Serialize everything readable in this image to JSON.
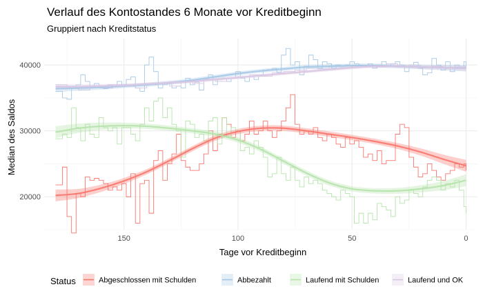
{
  "chart_data": {
    "type": "line",
    "title": "Verlauf des Kontostandes 6 Monate vor Kreditbeginn",
    "subtitle": "Gruppiert nach Kreditstatus",
    "xlabel": "Tage vor Kreditbeginn",
    "ylabel": "Median des Saldos",
    "x_reversed": true,
    "xlim": [
      185,
      -5
    ],
    "ylim": [
      15000,
      44000
    ],
    "x_ticks": [
      150,
      100,
      50,
      0
    ],
    "y_ticks": [
      20000,
      30000,
      40000
    ],
    "x_tick_labels": [
      "150",
      "100",
      "50",
      "0"
    ],
    "y_tick_labels": [
      "20000",
      "30000",
      "40000"
    ],
    "grid": true,
    "legend_position": "bottom",
    "legend_title": "Status",
    "series": [
      {
        "name": "Abgeschlossen mit Schulden",
        "color": "#f8766d",
        "x": [
          180,
          177,
          175,
          173,
          171,
          169,
          167,
          165,
          163,
          161,
          159,
          157,
          155,
          153,
          151,
          149,
          147,
          145,
          143,
          141,
          139,
          137,
          135,
          133,
          131,
          129,
          127,
          125,
          123,
          121,
          119,
          117,
          115,
          113,
          111,
          109,
          107,
          105,
          103,
          101,
          99,
          97,
          95,
          93,
          91,
          89,
          87,
          85,
          83,
          81,
          79,
          77,
          75,
          73,
          71,
          69,
          67,
          65,
          63,
          61,
          59,
          57,
          55,
          53,
          51,
          49,
          47,
          45,
          43,
          41,
          39,
          37,
          35,
          33,
          31,
          29,
          27,
          25,
          23,
          21,
          19,
          17,
          15,
          13,
          11,
          9,
          7,
          5,
          3,
          1,
          0
        ],
        "values": [
          21800,
          24500,
          17000,
          14500,
          20500,
          20000,
          23000,
          22500,
          22800,
          22500,
          22000,
          21000,
          21500,
          21000,
          22000,
          20000,
          23500,
          16000,
          22000,
          22500,
          17500,
          25500,
          27000,
          22500,
          25000,
          26500,
          29500,
          25500,
          24500,
          24000,
          24000,
          25000,
          26500,
          30000,
          27000,
          29500,
          32000,
          31000,
          29000,
          30000,
          28500,
          29500,
          31500,
          29500,
          30000,
          31500,
          30000,
          29000,
          30000,
          31500,
          33500,
          35500,
          31000,
          29500,
          30000,
          29500,
          30500,
          29000,
          28500,
          29500,
          29000,
          28000,
          27500,
          29000,
          28000,
          28500,
          27500,
          26000,
          26500,
          25500,
          27000,
          25000,
          25500,
          25500,
          29500,
          31000,
          30500,
          26000,
          24500,
          23000,
          23500,
          25000,
          24000,
          23000,
          22500,
          23500,
          24000,
          25000,
          24500,
          25000,
          24000
        ],
        "trend_x": [
          180,
          170,
          160,
          150,
          140,
          130,
          120,
          110,
          100,
          90,
          80,
          70,
          60,
          50,
          40,
          30,
          20,
          10,
          0
        ],
        "trend": [
          20200,
          20500,
          21300,
          22400,
          23800,
          25500,
          27300,
          28900,
          29900,
          30400,
          30400,
          30000,
          29500,
          29000,
          28400,
          27700,
          26800,
          25700,
          24700
        ],
        "ci_halfwidth": [
          900,
          700,
          550,
          450,
          400,
          400,
          400,
          400,
          400,
          400,
          400,
          400,
          400,
          400,
          400,
          450,
          550,
          700,
          900
        ]
      },
      {
        "name": "Abbezahlt",
        "color": "#a6c8e6",
        "x": [
          180,
          177,
          175,
          173,
          171,
          169,
          167,
          165,
          163,
          161,
          159,
          157,
          155,
          153,
          151,
          149,
          147,
          145,
          143,
          141,
          139,
          137,
          135,
          133,
          131,
          129,
          127,
          125,
          123,
          121,
          119,
          117,
          115,
          113,
          111,
          109,
          107,
          105,
          103,
          101,
          99,
          97,
          95,
          93,
          91,
          89,
          87,
          85,
          83,
          81,
          79,
          77,
          75,
          73,
          71,
          69,
          67,
          65,
          63,
          61,
          59,
          57,
          55,
          53,
          51,
          49,
          47,
          45,
          43,
          41,
          39,
          37,
          35,
          33,
          31,
          29,
          27,
          25,
          23,
          21,
          19,
          17,
          15,
          13,
          11,
          9,
          7,
          5,
          3,
          1,
          0
        ],
        "values": [
          36000,
          35000,
          34800,
          36500,
          37000,
          38500,
          37500,
          36800,
          37200,
          36600,
          36400,
          37000,
          36800,
          37500,
          37000,
          37800,
          38200,
          36500,
          36000,
          40000,
          41200,
          39000,
          36500,
          37000,
          37200,
          36500,
          36800,
          36500,
          38000,
          37000,
          37400,
          36200,
          37800,
          38500,
          37000,
          37800,
          38000,
          37500,
          38000,
          39000,
          38000,
          37500,
          38300,
          37800,
          38500,
          39200,
          39300,
          39500,
          38900,
          41500,
          42500,
          40000,
          40500,
          38500,
          39800,
          41500,
          40800,
          39500,
          40500,
          40200,
          39500,
          40000,
          39800,
          40000,
          40500,
          40200,
          40000,
          39800,
          40200,
          39500,
          40000,
          40500,
          39800,
          40200,
          40500,
          40000,
          39000,
          40000,
          40400,
          39500,
          38500,
          38800,
          41000,
          40000,
          39200,
          40500,
          39000,
          40000,
          39500,
          40500,
          39500
        ],
        "trend_x": [
          180,
          170,
          160,
          150,
          140,
          130,
          120,
          110,
          100,
          90,
          80,
          70,
          60,
          50,
          40,
          30,
          20,
          10,
          0
        ],
        "trend": [
          36400,
          36500,
          36600,
          36800,
          37000,
          37300,
          37700,
          38200,
          38700,
          39100,
          39400,
          39700,
          39800,
          39900,
          39900,
          39800,
          39700,
          39600,
          39500
        ],
        "ci_halfwidth": [
          500,
          400,
          350,
          300,
          300,
          300,
          300,
          300,
          300,
          300,
          300,
          300,
          300,
          300,
          300,
          300,
          350,
          400,
          500
        ]
      },
      {
        "name": "Laufend mit Schulden",
        "color": "#b5e3ab",
        "x": [
          180,
          177,
          175,
          173,
          171,
          169,
          167,
          165,
          163,
          161,
          159,
          157,
          155,
          153,
          151,
          149,
          147,
          145,
          143,
          141,
          139,
          137,
          135,
          133,
          131,
          129,
          127,
          125,
          123,
          121,
          119,
          117,
          115,
          113,
          111,
          109,
          107,
          105,
          103,
          101,
          99,
          97,
          95,
          93,
          91,
          89,
          87,
          85,
          83,
          81,
          79,
          77,
          75,
          73,
          71,
          69,
          67,
          65,
          63,
          61,
          59,
          57,
          55,
          53,
          51,
          49,
          47,
          45,
          43,
          41,
          39,
          37,
          35,
          33,
          31,
          29,
          27,
          25,
          23,
          21,
          19,
          17,
          15,
          13,
          11,
          9,
          7,
          5,
          3,
          1,
          0
        ],
        "values": [
          28800,
          29500,
          29000,
          33500,
          30500,
          28500,
          31000,
          29500,
          29000,
          32000,
          30500,
          30000,
          30500,
          28000,
          30500,
          30500,
          29500,
          28500,
          31000,
          33500,
          31500,
          34500,
          35000,
          32000,
          33500,
          31000,
          30000,
          26000,
          31500,
          31000,
          29000,
          29500,
          28500,
          31500,
          32000,
          28000,
          32000,
          29000,
          30500,
          30000,
          27000,
          27500,
          26500,
          28500,
          27500,
          26000,
          23000,
          23500,
          26000,
          23500,
          22500,
          24500,
          22500,
          21500,
          23000,
          22000,
          22500,
          22000,
          21000,
          20500,
          20000,
          19500,
          21000,
          20500,
          20000,
          16000,
          17500,
          16000,
          17500,
          16500,
          19000,
          18500,
          18000,
          17000,
          20000,
          19000,
          19500,
          21000,
          20500,
          20000,
          21500,
          22500,
          23000,
          22500,
          21000,
          22000,
          21500,
          22500,
          21000,
          18500,
          17500
        ],
        "trend_x": [
          180,
          170,
          160,
          150,
          140,
          130,
          120,
          110,
          100,
          90,
          80,
          70,
          60,
          50,
          40,
          30,
          20,
          10,
          0
        ],
        "trend": [
          29800,
          30400,
          30700,
          30800,
          30700,
          30400,
          30000,
          29500,
          28600,
          27200,
          25400,
          23600,
          22100,
          21200,
          20900,
          20900,
          21200,
          21700,
          22500
        ],
        "ci_halfwidth": [
          900,
          700,
          550,
          450,
          400,
          400,
          400,
          400,
          400,
          400,
          400,
          400,
          400,
          400,
          400,
          450,
          550,
          700,
          900
        ]
      },
      {
        "name": "Laufend und OK",
        "color": "#d9c7e3",
        "x": [
          180,
          175,
          170,
          165,
          160,
          155,
          150,
          145,
          140,
          135,
          130,
          125,
          120,
          115,
          110,
          105,
          100,
          95,
          90,
          85,
          80,
          75,
          70,
          65,
          60,
          55,
          50,
          45,
          40,
          35,
          30,
          25,
          20,
          15,
          10,
          5,
          0
        ],
        "values": [
          37000,
          36500,
          36200,
          36800,
          36500,
          37000,
          36800,
          36500,
          37000,
          37200,
          36800,
          37500,
          37200,
          37800,
          37500,
          38000,
          38200,
          38500,
          38300,
          38800,
          39000,
          39200,
          39500,
          39400,
          39800,
          39600,
          39900,
          40000,
          39700,
          40200,
          39800,
          40000,
          39600,
          39800,
          39500,
          39700,
          39400
        ],
        "trend_x": [
          180,
          170,
          160,
          150,
          140,
          130,
          120,
          110,
          100,
          90,
          80,
          70,
          60,
          50,
          40,
          30,
          20,
          10,
          0
        ],
        "trend": [
          36700,
          36700,
          36800,
          36900,
          37100,
          37300,
          37500,
          37800,
          38100,
          38400,
          38700,
          39000,
          39300,
          39600,
          39800,
          39800,
          39700,
          39600,
          39500
        ],
        "ci_halfwidth": [
          400,
          350,
          300,
          250,
          250,
          250,
          250,
          250,
          250,
          250,
          250,
          250,
          250,
          250,
          250,
          250,
          300,
          350,
          400
        ]
      }
    ]
  }
}
